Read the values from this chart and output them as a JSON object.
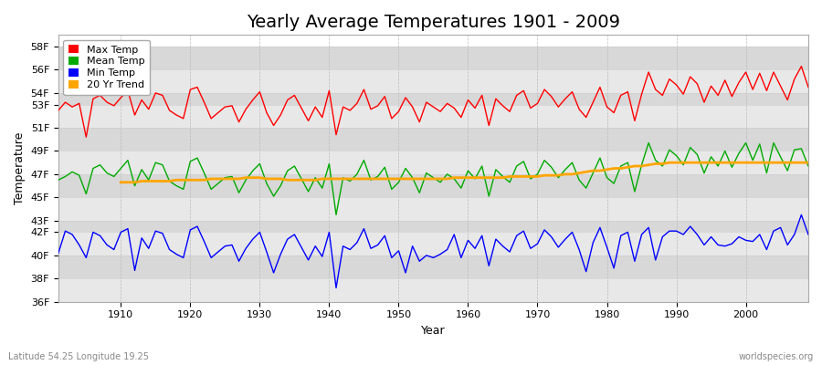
{
  "title": "Yearly Average Temperatures 1901 - 2009",
  "xlabel": "Year",
  "ylabel": "Temperature",
  "fig_bg_color": "#ffffff",
  "plot_bg_color": "#f0f0f0",
  "band_colors": [
    "#e8e8e8",
    "#d8d8d8"
  ],
  "grid_color": "#cccccc",
  "max_color": "#ff0000",
  "mean_color": "#00aa00",
  "min_color": "#0000ff",
  "trend_color": "#ffa500",
  "ylim": [
    36,
    59
  ],
  "yticks": [
    36,
    38,
    40,
    42,
    43,
    45,
    47,
    49,
    51,
    53,
    54,
    56,
    58
  ],
  "xlim": [
    1901,
    2009
  ],
  "xticks": [
    1910,
    1920,
    1930,
    1940,
    1950,
    1960,
    1970,
    1980,
    1990,
    2000
  ],
  "legend_labels": [
    "Max Temp",
    "Mean Temp",
    "Min Temp",
    "20 Yr Trend"
  ],
  "footer_left": "Latitude 54.25 Longitude 19.25",
  "footer_right": "worldspecies.org",
  "title_fontsize": 14,
  "axis_label_fontsize": 9,
  "tick_fontsize": 8,
  "footer_fontsize": 7,
  "line_width": 1.0,
  "years_start": 1901,
  "years_end": 2009,
  "trend_start": 1910,
  "max_temps": [
    52.5,
    53.2,
    52.8,
    53.1,
    50.2,
    53.5,
    53.8,
    53.2,
    52.9,
    53.6,
    54.2,
    52.1,
    53.4,
    52.6,
    54.0,
    53.8,
    52.5,
    52.1,
    51.8,
    54.3,
    54.5,
    53.2,
    51.8,
    52.3,
    52.8,
    52.9,
    51.5,
    52.6,
    53.4,
    54.1,
    52.3,
    51.2,
    52.1,
    53.4,
    53.8,
    52.7,
    51.6,
    52.8,
    51.9,
    54.2,
    50.4,
    52.8,
    52.5,
    53.1,
    54.3,
    52.6,
    52.9,
    53.7,
    51.8,
    52.4,
    53.6,
    52.8,
    51.5,
    53.2,
    52.8,
    52.4,
    53.1,
    52.7,
    51.9,
    53.4,
    52.7,
    53.8,
    51.2,
    53.5,
    52.9,
    52.4,
    53.8,
    54.2,
    52.7,
    53.1,
    54.3,
    53.7,
    52.8,
    53.5,
    54.1,
    52.6,
    51.9,
    53.2,
    54.5,
    52.8,
    52.3,
    53.8,
    54.1,
    51.6,
    53.9,
    55.8,
    54.3,
    53.8,
    55.2,
    54.7,
    53.9,
    55.4,
    54.8,
    53.2,
    54.6,
    53.8,
    55.1,
    53.7,
    54.9,
    55.8,
    54.3,
    55.7,
    54.2,
    55.8,
    54.6,
    53.4,
    55.2,
    56.3,
    54.5
  ],
  "mean_temps": [
    46.5,
    46.8,
    47.2,
    46.9,
    45.3,
    47.5,
    47.8,
    47.1,
    46.8,
    47.5,
    48.2,
    46.0,
    47.4,
    46.5,
    48.0,
    47.8,
    46.4,
    46.0,
    45.7,
    48.1,
    48.4,
    47.1,
    45.7,
    46.2,
    46.7,
    46.8,
    45.4,
    46.5,
    47.3,
    47.9,
    46.2,
    45.1,
    46.0,
    47.3,
    47.7,
    46.6,
    45.5,
    46.7,
    45.8,
    47.9,
    43.5,
    46.7,
    46.4,
    47.0,
    48.2,
    46.5,
    46.8,
    47.6,
    45.7,
    46.3,
    47.5,
    46.7,
    45.4,
    47.1,
    46.7,
    46.3,
    47.0,
    46.6,
    45.8,
    47.3,
    46.6,
    47.7,
    45.1,
    47.4,
    46.8,
    46.3,
    47.7,
    48.1,
    46.6,
    47.0,
    48.2,
    47.6,
    46.7,
    47.4,
    48.0,
    46.5,
    45.8,
    47.1,
    48.4,
    46.7,
    46.2,
    47.7,
    48.0,
    45.5,
    47.8,
    49.7,
    48.2,
    47.7,
    49.1,
    48.6,
    47.8,
    49.3,
    48.7,
    47.1,
    48.5,
    47.7,
    49.0,
    47.6,
    48.8,
    49.7,
    48.2,
    49.6,
    47.1,
    49.7,
    48.5,
    47.3,
    49.1,
    49.2,
    47.7
  ],
  "min_temps": [
    40.2,
    42.1,
    41.8,
    40.9,
    39.8,
    42.0,
    41.7,
    40.9,
    40.5,
    42.0,
    42.3,
    38.7,
    41.5,
    40.6,
    42.1,
    41.9,
    40.5,
    40.1,
    39.8,
    42.2,
    42.5,
    41.2,
    39.8,
    40.3,
    40.8,
    40.9,
    39.5,
    40.6,
    41.4,
    42.0,
    40.3,
    38.5,
    40.1,
    41.4,
    41.8,
    40.7,
    39.6,
    40.8,
    39.9,
    42.0,
    37.2,
    40.8,
    40.5,
    41.1,
    42.3,
    40.6,
    40.9,
    41.7,
    39.8,
    40.4,
    38.5,
    40.8,
    39.5,
    40.0,
    39.8,
    40.1,
    40.5,
    41.8,
    39.8,
    41.3,
    40.6,
    41.7,
    39.1,
    41.4,
    40.8,
    40.3,
    41.7,
    42.1,
    40.6,
    41.0,
    42.2,
    41.6,
    40.7,
    41.4,
    42.0,
    40.5,
    38.6,
    41.1,
    42.4,
    40.7,
    38.9,
    41.7,
    42.0,
    39.5,
    41.8,
    42.4,
    39.6,
    41.6,
    42.1,
    42.1,
    41.8,
    42.5,
    41.8,
    40.9,
    41.6,
    40.9,
    40.8,
    41.0,
    41.6,
    41.3,
    41.2,
    41.8,
    40.5,
    42.1,
    42.4,
    40.9,
    41.8,
    43.5,
    41.8
  ],
  "trend_vals": [
    46.3,
    46.3,
    46.3,
    46.4,
    46.4,
    46.4,
    46.4,
    46.4,
    46.5,
    46.5,
    46.5,
    46.5,
    46.5,
    46.6,
    46.6,
    46.6,
    46.6,
    46.6,
    46.7,
    46.7,
    46.7,
    46.6,
    46.6,
    46.6,
    46.5,
    46.5,
    46.5,
    46.5,
    46.5,
    46.6,
    46.6,
    46.6,
    46.6,
    46.6,
    46.6,
    46.6,
    46.6,
    46.6,
    46.6,
    46.6,
    46.6,
    46.6,
    46.6,
    46.6,
    46.6,
    46.6,
    46.6,
    46.6,
    46.7,
    46.7,
    46.7,
    46.7,
    46.7,
    46.7,
    46.7,
    46.7,
    46.8,
    46.8,
    46.8,
    46.8,
    46.8,
    46.9,
    46.9,
    46.9,
    47.0,
    47.0,
    47.1,
    47.2,
    47.3,
    47.3,
    47.4,
    47.5,
    47.5,
    47.6,
    47.7,
    47.7,
    47.8,
    47.9,
    47.9,
    48.0,
    48.0,
    48.0,
    48.0,
    48.0,
    48.0,
    48.0,
    48.0,
    48.0,
    48.0,
    48.0,
    48.0,
    48.0,
    48.0,
    48.0,
    48.0,
    48.0,
    48.0,
    48.0,
    48.0,
    48.0
  ]
}
